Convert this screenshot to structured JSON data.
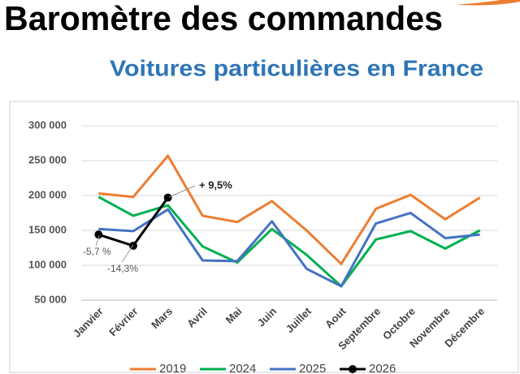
{
  "chart_data": {
    "type": "line",
    "title": "Baromètre des commandes",
    "subtitle": "Voitures particulières en France",
    "categories": [
      "Janvier",
      "Février",
      "Mars",
      "Avril",
      "Mai",
      "Juin",
      "Juillet",
      "Aout",
      "Septembre",
      "Octobre",
      "Novembre",
      "Décembre"
    ],
    "series": [
      {
        "name": "2019",
        "color": "#ed7d31",
        "values": [
          203000,
          198000,
          257000,
          171000,
          162000,
          192000,
          150000,
          102000,
          181000,
          201000,
          166000,
          197000
        ]
      },
      {
        "name": "2024",
        "color": "#00b050",
        "values": [
          198000,
          171000,
          186000,
          127000,
          104000,
          152000,
          115000,
          70000,
          137000,
          149000,
          124000,
          150000
        ]
      },
      {
        "name": "2025",
        "color": "#4472c4",
        "values": [
          152000,
          149000,
          180000,
          107000,
          106000,
          163000,
          95000,
          70000,
          160000,
          175000,
          139000,
          144000
        ]
      },
      {
        "name": "2026",
        "color": "#000000",
        "markers": true,
        "values": [
          144000,
          128000,
          197000,
          null,
          null,
          null,
          null,
          null,
          null,
          null,
          null,
          null
        ]
      }
    ],
    "annotations": [
      "+ 9,5%",
      "-5,7 %",
      "-14,3%"
    ],
    "ylim": [
      50000,
      300000
    ],
    "yticks": [
      {
        "value": 50000,
        "label": "50 000"
      },
      {
        "value": 100000,
        "label": "100 000"
      },
      {
        "value": 150000,
        "label": "150 000"
      },
      {
        "value": 200000,
        "label": "200 000"
      },
      {
        "value": 250000,
        "label": "250 000"
      },
      {
        "value": 300000,
        "label": "300 000"
      }
    ],
    "grid": true,
    "legend": "bottom"
  }
}
